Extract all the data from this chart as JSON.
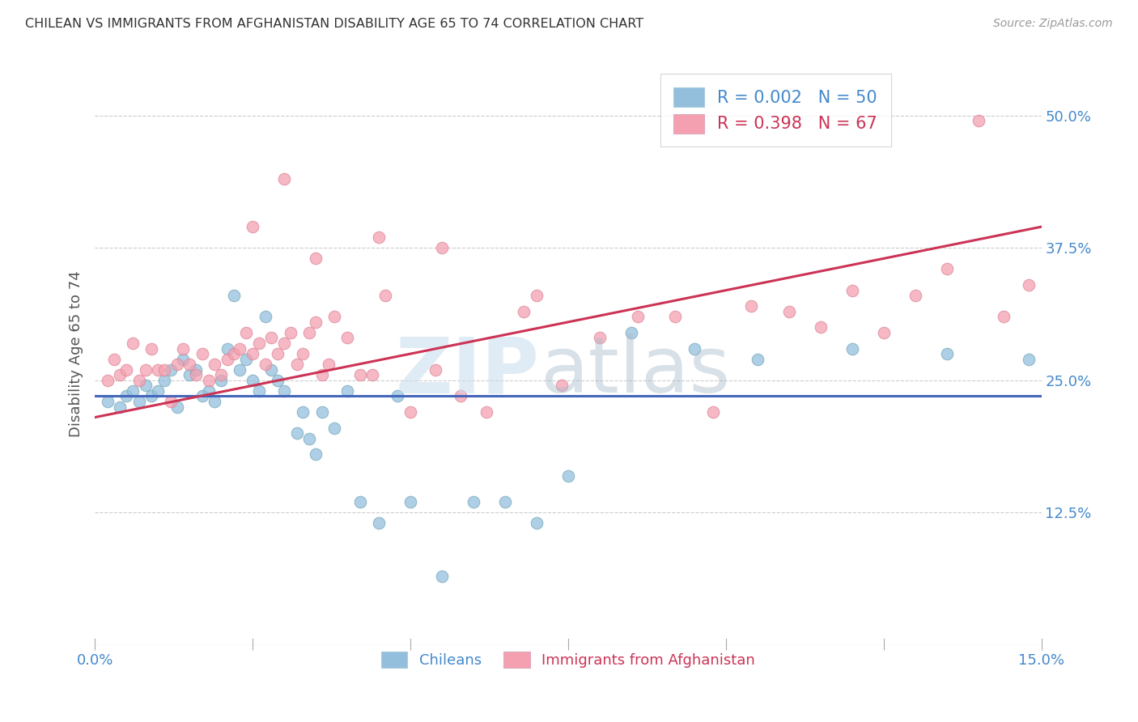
{
  "title": "CHILEAN VS IMMIGRANTS FROM AFGHANISTAN DISABILITY AGE 65 TO 74 CORRELATION CHART",
  "source": "Source: ZipAtlas.com",
  "ylabel": "Disability Age 65 to 74",
  "ytick_labels": [
    "50.0%",
    "37.5%",
    "25.0%",
    "12.5%"
  ],
  "ytick_values": [
    0.5,
    0.375,
    0.25,
    0.125
  ],
  "xlim": [
    0.0,
    0.15
  ],
  "ylim": [
    0.0,
    0.55
  ],
  "blue_color": "#93BFDD",
  "pink_color": "#F4A0B0",
  "blue_line_color": "#4466BB",
  "pink_line_color": "#CC3355",
  "chileans_x": [
    0.002,
    0.004,
    0.005,
    0.006,
    0.007,
    0.008,
    0.009,
    0.01,
    0.011,
    0.012,
    0.013,
    0.014,
    0.015,
    0.016,
    0.017,
    0.018,
    0.019,
    0.02,
    0.021,
    0.022,
    0.023,
    0.024,
    0.025,
    0.026,
    0.027,
    0.028,
    0.029,
    0.03,
    0.032,
    0.033,
    0.034,
    0.035,
    0.036,
    0.038,
    0.04,
    0.042,
    0.045,
    0.048,
    0.05,
    0.055,
    0.06,
    0.065,
    0.07,
    0.075,
    0.085,
    0.095,
    0.105,
    0.12,
    0.135,
    0.148
  ],
  "chileans_y": [
    0.23,
    0.225,
    0.235,
    0.24,
    0.23,
    0.245,
    0.235,
    0.24,
    0.25,
    0.26,
    0.225,
    0.27,
    0.255,
    0.26,
    0.235,
    0.24,
    0.23,
    0.25,
    0.28,
    0.33,
    0.26,
    0.27,
    0.25,
    0.24,
    0.31,
    0.26,
    0.25,
    0.24,
    0.2,
    0.22,
    0.195,
    0.18,
    0.22,
    0.205,
    0.24,
    0.135,
    0.115,
    0.235,
    0.135,
    0.065,
    0.135,
    0.135,
    0.115,
    0.16,
    0.295,
    0.28,
    0.27,
    0.28,
    0.275,
    0.27
  ],
  "afghan_x": [
    0.002,
    0.003,
    0.004,
    0.005,
    0.006,
    0.007,
    0.008,
    0.009,
    0.01,
    0.011,
    0.012,
    0.013,
    0.014,
    0.015,
    0.016,
    0.017,
    0.018,
    0.019,
    0.02,
    0.021,
    0.022,
    0.023,
    0.024,
    0.025,
    0.026,
    0.027,
    0.028,
    0.029,
    0.03,
    0.031,
    0.032,
    0.033,
    0.034,
    0.035,
    0.036,
    0.037,
    0.038,
    0.04,
    0.042,
    0.044,
    0.046,
    0.05,
    0.054,
    0.058,
    0.062,
    0.068,
    0.074,
    0.08,
    0.086,
    0.092,
    0.098,
    0.104,
    0.11,
    0.115,
    0.12,
    0.125,
    0.13,
    0.135,
    0.14,
    0.144,
    0.148,
    0.025,
    0.03,
    0.035,
    0.045,
    0.055,
    0.07
  ],
  "afghan_y": [
    0.25,
    0.27,
    0.255,
    0.26,
    0.285,
    0.25,
    0.26,
    0.28,
    0.26,
    0.26,
    0.23,
    0.265,
    0.28,
    0.265,
    0.255,
    0.275,
    0.25,
    0.265,
    0.255,
    0.27,
    0.275,
    0.28,
    0.295,
    0.275,
    0.285,
    0.265,
    0.29,
    0.275,
    0.285,
    0.295,
    0.265,
    0.275,
    0.295,
    0.305,
    0.255,
    0.265,
    0.31,
    0.29,
    0.255,
    0.255,
    0.33,
    0.22,
    0.26,
    0.235,
    0.22,
    0.315,
    0.245,
    0.29,
    0.31,
    0.31,
    0.22,
    0.32,
    0.315,
    0.3,
    0.335,
    0.295,
    0.33,
    0.355,
    0.495,
    0.31,
    0.34,
    0.395,
    0.44,
    0.365,
    0.385,
    0.375,
    0.33
  ],
  "blue_line_x": [
    0.0,
    0.15
  ],
  "blue_line_y": [
    0.235,
    0.235
  ],
  "pink_line_x": [
    0.0,
    0.15
  ],
  "pink_line_y": [
    0.215,
    0.395
  ],
  "watermark_zip": "ZIP",
  "watermark_atlas": "atlas",
  "legend_label_1": "R = 0.002   N = 50",
  "legend_label_2": "R = 0.398   N = 67",
  "bottom_label_1": "Chileans",
  "bottom_label_2": "Immigrants from Afghanistan"
}
